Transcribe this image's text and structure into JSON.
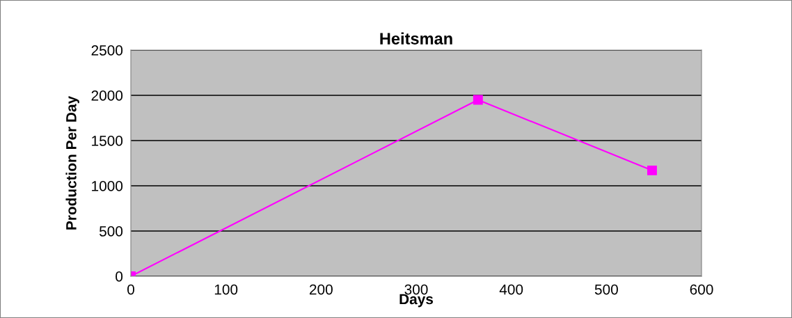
{
  "chart_data": {
    "type": "line",
    "title": "Heitsman",
    "xlabel": "Days",
    "ylabel": "Production Per Day",
    "x": [
      0,
      365,
      548
    ],
    "series": [
      {
        "color": "#ff00ff",
        "values": [
          0,
          1950,
          1170
        ]
      }
    ],
    "xlim": [
      0,
      600
    ],
    "xticks": [
      0,
      100,
      200,
      300,
      400,
      500,
      600
    ],
    "ylim": [
      0,
      2500
    ],
    "yticks": [
      0,
      500,
      1000,
      1500,
      2000,
      2500
    ],
    "grid": "y",
    "marker": "square",
    "line_style": "solid",
    "legend": false
  }
}
